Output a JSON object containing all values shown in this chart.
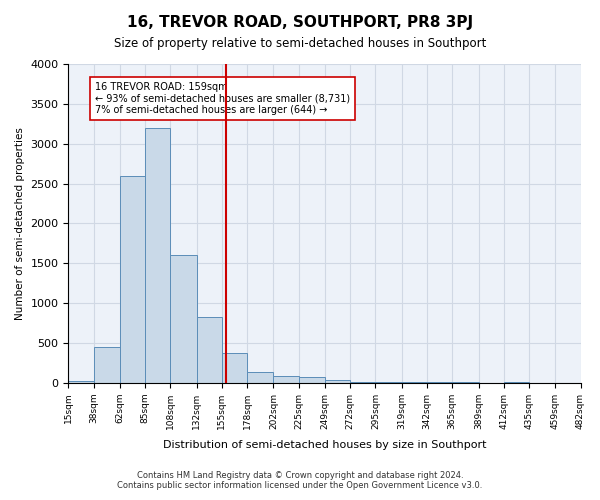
{
  "title": "16, TREVOR ROAD, SOUTHPORT, PR8 3PJ",
  "subtitle": "Size of property relative to semi-detached houses in Southport",
  "xlabel": "Distribution of semi-detached houses by size in Southport",
  "ylabel": "Number of semi-detached properties",
  "footer_line1": "Contains HM Land Registry data © Crown copyright and database right 2024.",
  "footer_line2": "Contains public sector information licensed under the Open Government Licence v3.0.",
  "property_size": 159,
  "property_label": "16 TREVOR ROAD: 159sqm",
  "pct_smaller": 93,
  "pct_larger": 7,
  "n_smaller": 8731,
  "n_larger": 644,
  "annotation_smaller": "← 93% of semi-detached houses are smaller (8,731)",
  "annotation_larger": "7% of semi-detached houses are larger (644) →",
  "vline_x": 159,
  "bin_edges": [
    15,
    38,
    62,
    85,
    108,
    132,
    155,
    178,
    202,
    225,
    249,
    272,
    295,
    319,
    342,
    365,
    389,
    412,
    435,
    459,
    482
  ],
  "bar_heights": [
    20,
    450,
    2600,
    3200,
    1600,
    820,
    370,
    140,
    80,
    70,
    30,
    15,
    10,
    5,
    5,
    5,
    0,
    5,
    0,
    0
  ],
  "bar_color": "#c9d9e8",
  "bar_edge_color": "#5b8db8",
  "vline_color": "#cc0000",
  "box_edge_color": "#cc0000",
  "grid_color": "#d0d8e4",
  "bg_color": "#edf2f9",
  "ylim": [
    0,
    4000
  ],
  "yticks": [
    0,
    500,
    1000,
    1500,
    2000,
    2500,
    3000,
    3500,
    4000
  ]
}
